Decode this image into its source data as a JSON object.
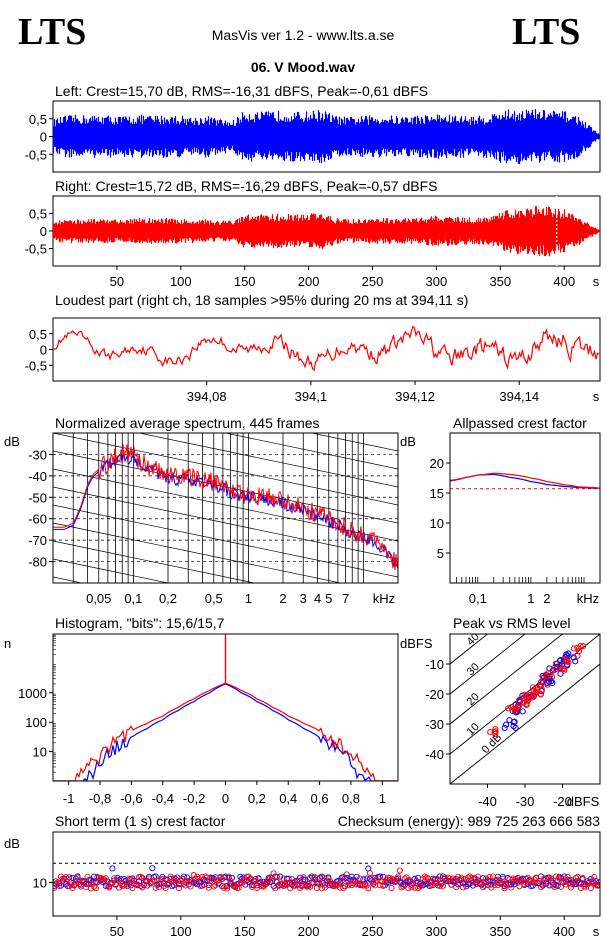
{
  "header": {
    "logo_left": "LTS",
    "logo_right": "LTS",
    "app": "MasVis ver 1.2 - www.lts.a.se",
    "file": "06. V Mood.wav"
  },
  "colors": {
    "left": "#0000ff",
    "right": "#ff0000",
    "grid": "#000000"
  },
  "chart_data": [
    {
      "id": "wave_left",
      "type": "area",
      "title": "Left: Crest=15,70 dB, RMS=-16,31 dBFS, Peak=-0,61 dBFS",
      "yticks": [
        0.5,
        0,
        -0.5
      ],
      "ytick_labels": [
        "0,5",
        "0",
        "-0,5"
      ],
      "ylim": [
        -1,
        1
      ],
      "x_duration_s": 428,
      "envelope_time_s": [
        0,
        10,
        20,
        30,
        40,
        50,
        60,
        70,
        80,
        90,
        100,
        110,
        120,
        130,
        140,
        150,
        160,
        170,
        180,
        190,
        200,
        210,
        220,
        230,
        240,
        250,
        260,
        270,
        280,
        290,
        300,
        310,
        320,
        330,
        340,
        350,
        360,
        370,
        380,
        390,
        400,
        410,
        420,
        428
      ],
      "envelope_amplitude": [
        0.5,
        0.6,
        0.62,
        0.6,
        0.62,
        0.58,
        0.6,
        0.62,
        0.6,
        0.62,
        0.6,
        0.55,
        0.6,
        0.5,
        0.45,
        0.75,
        0.7,
        0.72,
        0.75,
        0.7,
        0.72,
        0.78,
        0.6,
        0.55,
        0.58,
        0.6,
        0.62,
        0.58,
        0.6,
        0.62,
        0.65,
        0.62,
        0.6,
        0.58,
        0.62,
        0.75,
        0.78,
        0.8,
        0.78,
        0.75,
        0.72,
        0.6,
        0.3,
        0.05
      ]
    },
    {
      "id": "wave_right",
      "type": "area",
      "title": "Right: Crest=15,72 dB, RMS=-16,29 dBFS, Peak=-0,57 dBFS",
      "yticks": [
        0.5,
        0,
        -0.5
      ],
      "ytick_labels": [
        "0,5",
        "0",
        "-0,5"
      ],
      "ylim": [
        -1,
        1
      ],
      "xticks": [
        50,
        100,
        150,
        200,
        250,
        300,
        350,
        400
      ],
      "xtick_labels": [
        "50",
        "100",
        "150",
        "200",
        "250",
        "300",
        "350",
        "400"
      ],
      "xunit": "s",
      "x_duration_s": 428,
      "marker_s": 394.11,
      "envelope_time_s": [
        0,
        10,
        20,
        30,
        40,
        50,
        60,
        70,
        80,
        90,
        100,
        110,
        120,
        130,
        140,
        150,
        160,
        170,
        180,
        190,
        200,
        210,
        220,
        230,
        240,
        250,
        260,
        270,
        280,
        290,
        300,
        310,
        320,
        330,
        340,
        350,
        360,
        370,
        380,
        390,
        400,
        410,
        420,
        428
      ],
      "envelope_amplitude": [
        0.3,
        0.35,
        0.35,
        0.35,
        0.35,
        0.33,
        0.35,
        0.4,
        0.35,
        0.38,
        0.35,
        0.35,
        0.35,
        0.3,
        0.3,
        0.5,
        0.48,
        0.5,
        0.5,
        0.48,
        0.5,
        0.55,
        0.38,
        0.35,
        0.35,
        0.38,
        0.38,
        0.36,
        0.38,
        0.4,
        0.45,
        0.42,
        0.4,
        0.38,
        0.4,
        0.55,
        0.65,
        0.7,
        0.72,
        0.72,
        0.62,
        0.45,
        0.2,
        0.02
      ]
    },
    {
      "id": "loudest",
      "type": "line",
      "title": "Loudest part (right ch, 18 samples >95% during 20 ms at 394,11 s)",
      "yticks": [
        0.5,
        0,
        -0.5
      ],
      "ytick_labels": [
        "0,5",
        "0",
        "-0,5"
      ],
      "ylim": [
        -1,
        1
      ],
      "xlim": [
        394.0505,
        394.1555
      ],
      "xticks": [
        394.08,
        394.1,
        394.12,
        394.14
      ],
      "xtick_labels": [
        "394,08",
        "394,1",
        "394,12",
        "394,14"
      ],
      "xunit": "s"
    },
    {
      "id": "spectrum",
      "type": "line",
      "title": "Normalized average spectrum, 445 frames",
      "ylabel": "dB",
      "ylim": [
        -90,
        -20
      ],
      "yticks": [
        -30,
        -40,
        -50,
        -60,
        -70,
        -80
      ],
      "ytick_labels": [
        "-30",
        "-40",
        "-50",
        "-60",
        "-70",
        "-80"
      ],
      "xlim_khz": [
        0.02,
        20
      ],
      "xticks_khz": [
        0.05,
        0.1,
        0.2,
        0.5,
        1,
        2,
        3,
        4,
        5,
        7
      ],
      "xtick_labels": [
        "0,05",
        "0,1",
        "0,2",
        "0,5",
        "1",
        "2",
        "3",
        "4",
        "5",
        "7"
      ],
      "xunit": "kHz",
      "series": [
        {
          "color": "#0000ff",
          "x_khz": [
            0.02,
            0.025,
            0.03,
            0.035,
            0.04,
            0.045,
            0.05,
            0.06,
            0.07,
            0.08,
            0.1,
            0.12,
            0.15,
            0.2,
            0.3,
            0.5,
            0.7,
            1,
            1.5,
            2,
            3,
            4,
            5,
            6,
            8,
            10,
            13,
            16,
            20
          ],
          "y_db": [
            -65,
            -65,
            -63,
            -55,
            -45,
            -40,
            -38,
            -35,
            -33,
            -31,
            -32,
            -35,
            -38,
            -41,
            -42,
            -44,
            -48,
            -50,
            -51,
            -53,
            -56,
            -59,
            -61,
            -63,
            -67,
            -69,
            -72,
            -76,
            -83
          ]
        },
        {
          "color": "#ff0000",
          "x_khz": [
            0.02,
            0.025,
            0.03,
            0.035,
            0.04,
            0.045,
            0.05,
            0.06,
            0.07,
            0.08,
            0.1,
            0.12,
            0.15,
            0.2,
            0.3,
            0.5,
            0.7,
            1,
            1.5,
            2,
            3,
            4,
            5,
            6,
            8,
            10,
            13,
            16,
            20
          ],
          "y_db": [
            -64,
            -64,
            -62,
            -54,
            -44,
            -39,
            -37,
            -34,
            -31,
            -29,
            -31,
            -34,
            -37,
            -40,
            -41,
            -43,
            -47,
            -49,
            -50,
            -52,
            -55,
            -58,
            -60,
            -62,
            -66,
            -68,
            -71,
            -75,
            -82
          ]
        }
      ]
    },
    {
      "id": "allpass",
      "type": "line",
      "title": "Allpassed crest factor",
      "ylabel": "dB",
      "ylim": [
        0,
        25
      ],
      "yticks": [
        20,
        15,
        10,
        5
      ],
      "ytick_labels": [
        "20",
        "15",
        "10",
        "5"
      ],
      "xlim_khz": [
        0.03,
        20
      ],
      "xticks_khz": [
        0.1,
        1,
        2
      ],
      "xtick_labels": [
        "0,1",
        "1",
        "2"
      ],
      "xunit": "kHz",
      "reference_db": 15.7,
      "series": [
        {
          "color": "#0000ff",
          "x_khz": [
            0.03,
            0.06,
            0.1,
            0.2,
            0.4,
            1,
            2,
            4,
            8,
            16,
            20
          ],
          "y_db": [
            17.0,
            17.6,
            18.0,
            18.1,
            17.6,
            16.9,
            16.4,
            16.1,
            15.9,
            15.8,
            15.8
          ]
        },
        {
          "color": "#ff0000",
          "x_khz": [
            0.03,
            0.06,
            0.1,
            0.2,
            0.4,
            1,
            2,
            4,
            8,
            16,
            20
          ],
          "y_db": [
            17.1,
            17.6,
            18.0,
            18.3,
            18.1,
            17.5,
            16.9,
            16.4,
            16.0,
            15.9,
            15.8
          ]
        }
      ]
    },
    {
      "id": "histogram",
      "type": "line",
      "title": "Histogram, \"bits\": 15,6/15,7",
      "ylabel": "n",
      "yscale": "log",
      "ylim": [
        1,
        100000
      ],
      "yticks": [
        1000,
        100,
        10
      ],
      "ytick_labels": [
        "1000",
        "100",
        "10"
      ],
      "xlim": [
        -1.1,
        1.1
      ],
      "xticks": [
        -1,
        -0.8,
        -0.6,
        -0.4,
        -0.2,
        0,
        0.2,
        0.4,
        0.6,
        0.8,
        1
      ],
      "xtick_labels": [
        "-1",
        "-0,8",
        "-0,6",
        "-0,4",
        "-0,2",
        "0",
        "0,2",
        "0,4",
        "0,6",
        "0,8",
        "1"
      ],
      "series": [
        {
          "color": "#0000ff",
          "x": [
            -0.92,
            -0.85,
            -0.8,
            -0.7,
            -0.6,
            -0.5,
            -0.4,
            -0.3,
            -0.2,
            -0.1,
            0,
            0.1,
            0.2,
            0.3,
            0.4,
            0.5,
            0.6,
            0.7,
            0.8,
            0.85,
            0.92
          ],
          "y": [
            1,
            2,
            4,
            15,
            30,
            60,
            120,
            250,
            500,
            1000,
            2000,
            1000,
            500,
            250,
            120,
            60,
            30,
            15,
            4,
            2,
            1
          ]
        },
        {
          "color": "#ff0000",
          "x": [
            -0.96,
            -0.88,
            -0.8,
            -0.7,
            -0.6,
            -0.5,
            -0.4,
            -0.3,
            -0.2,
            -0.1,
            0,
            0.1,
            0.2,
            0.3,
            0.4,
            0.5,
            0.6,
            0.7,
            0.8,
            0.88,
            0.96
          ],
          "y": [
            1,
            3,
            8,
            25,
            50,
            90,
            160,
            320,
            620,
            1200,
            2100,
            1200,
            620,
            320,
            160,
            90,
            50,
            25,
            8,
            3,
            1
          ]
        }
      ]
    },
    {
      "id": "peak_rms",
      "type": "scatter",
      "title": "Peak vs RMS level",
      "ylabel": "dBFS",
      "xunit": "dBFS",
      "xlim": [
        -50,
        -10
      ],
      "ylim": [
        -50,
        0
      ],
      "xticks": [
        -40,
        -30,
        -20
      ],
      "xtick_labels": [
        "-40",
        "-30",
        "-20"
      ],
      "yticks": [
        -10,
        -20,
        -30,
        -40
      ],
      "ytick_labels": [
        "-10",
        "-20",
        "-30",
        "-40"
      ],
      "diagonals_db": [
        40,
        30,
        20,
        10,
        0
      ],
      "diagonal_labels": [
        "40",
        "30",
        "20",
        "10",
        "0 dB"
      ],
      "series": [
        {
          "color": "#0000ff",
          "points": [
            [
              -34,
              -30
            ],
            [
              -32,
              -25
            ],
            [
              -30,
              -22
            ],
            [
              -28,
              -20
            ],
            [
              -26,
              -18
            ],
            [
              -24,
              -15
            ],
            [
              -22,
              -12
            ],
            [
              -20,
              -10
            ],
            [
              -18,
              -8
            ]
          ]
        },
        {
          "color": "#ff0000",
          "points": [
            [
              -38,
              -33
            ],
            [
              -33,
              -25
            ],
            [
              -31,
              -23
            ],
            [
              -29,
              -21
            ],
            [
              -27,
              -19
            ],
            [
              -25,
              -16
            ],
            [
              -23,
              -13
            ],
            [
              -21,
              -11
            ],
            [
              -19,
              -8
            ],
            [
              -17,
              -6
            ],
            [
              -15,
              -4
            ]
          ]
        }
      ]
    },
    {
      "id": "crest_short",
      "type": "scatter",
      "title": "Short term (1 s) crest factor",
      "checksum": "Checksum (energy):   989 725 263 666 583",
      "ylabel": "dB",
      "ylim": [
        0,
        25
      ],
      "yticks": [
        10
      ],
      "ytick_labels": [
        "10"
      ],
      "reference_db": 15.7,
      "xticks": [
        50,
        100,
        150,
        200,
        250,
        300,
        350,
        400
      ],
      "xtick_labels": [
        "50",
        "100",
        "150",
        "200",
        "250",
        "300",
        "350",
        "400"
      ],
      "xunit": "s",
      "x_duration_s": 428,
      "series": [
        {
          "name": "",
          "color": "#0000ff",
          "mean_db": 10.3,
          "spread_db": 1.5
        },
        {
          "name": "",
          "color": "#ff0000",
          "mean_db": 10.0,
          "spread_db": 1.8
        }
      ]
    }
  ]
}
